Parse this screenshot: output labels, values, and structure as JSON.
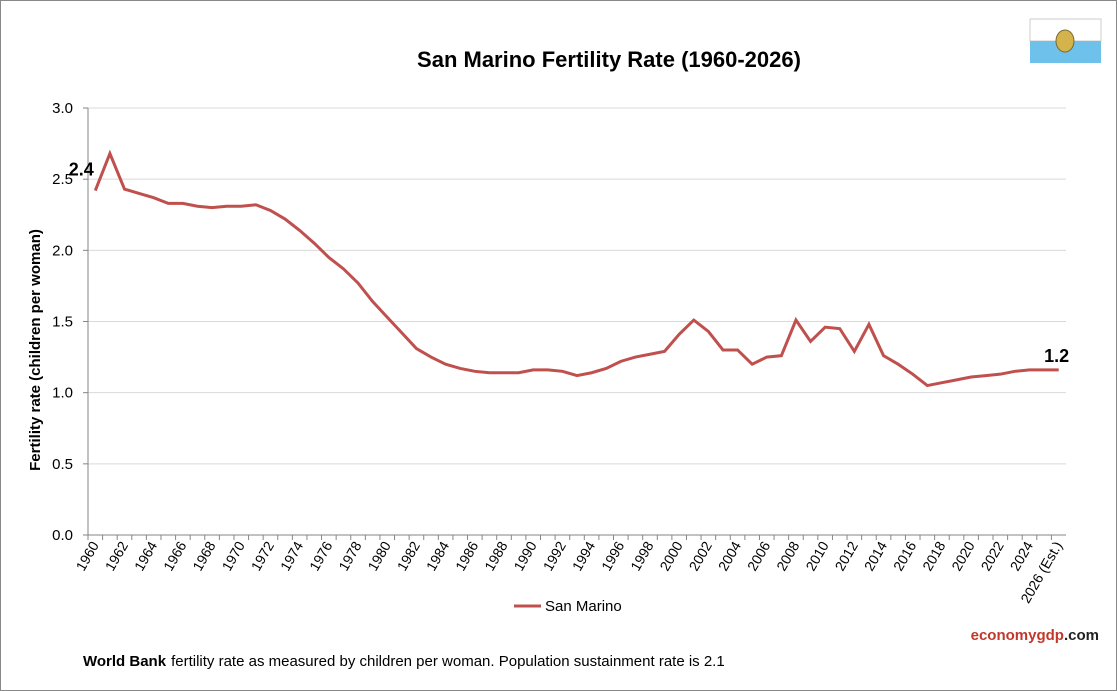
{
  "chart_data": {
    "type": "line",
    "title": "San Marino Fertility Rate (1960-2026)",
    "y_label": "Fertility rate (children per woman)",
    "categories": [
      "1960",
      null,
      "1962",
      null,
      "1964",
      null,
      "1966",
      null,
      "1968",
      null,
      "1970",
      null,
      "1972",
      null,
      "1974",
      null,
      "1976",
      null,
      "1978",
      null,
      "1980",
      null,
      "1982",
      null,
      "1984",
      null,
      "1986",
      null,
      "1988",
      null,
      "1990",
      null,
      "1992",
      null,
      "1994",
      null,
      "1996",
      null,
      "1998",
      null,
      "2000",
      null,
      "2002",
      null,
      "2004",
      null,
      "2006",
      null,
      "2008",
      null,
      "2010",
      null,
      "2012",
      null,
      "2014",
      null,
      "2016",
      null,
      "2018",
      null,
      "2020",
      null,
      "2022",
      null,
      "2024",
      null,
      "2026 (Est.)"
    ],
    "series": [
      {
        "name": "San Marino",
        "color": "#c0504d",
        "values": [
          2.42,
          2.68,
          2.43,
          2.4,
          2.37,
          2.33,
          2.33,
          2.31,
          2.3,
          2.31,
          2.31,
          2.32,
          2.28,
          2.22,
          2.14,
          2.05,
          1.95,
          1.87,
          1.77,
          1.64,
          1.53,
          1.42,
          1.31,
          1.25,
          1.2,
          1.17,
          1.15,
          1.14,
          1.14,
          1.14,
          1.16,
          1.16,
          1.15,
          1.12,
          1.14,
          1.17,
          1.22,
          1.25,
          1.27,
          1.29,
          1.41,
          1.51,
          1.43,
          1.3,
          1.3,
          1.2,
          1.25,
          1.26,
          1.51,
          1.36,
          1.46,
          1.45,
          1.29,
          1.48,
          1.26,
          1.2,
          1.13,
          1.05,
          1.07,
          1.09,
          1.11,
          1.12,
          1.13,
          1.15,
          1.16,
          1.16,
          1.16
        ],
        "value_labels": [
          "2.4",
          null,
          null,
          null,
          null,
          null,
          null,
          null,
          null,
          null,
          null,
          null,
          null,
          null,
          null,
          null,
          null,
          null,
          null,
          null,
          null,
          null,
          null,
          null,
          null,
          null,
          null,
          null,
          null,
          null,
          null,
          null,
          null,
          null,
          null,
          null,
          null,
          null,
          null,
          null,
          null,
          null,
          null,
          null,
          null,
          null,
          null,
          null,
          null,
          null,
          null,
          null,
          null,
          null,
          null,
          null,
          null,
          null,
          null,
          null,
          null,
          null,
          null,
          null,
          null,
          null,
          "1.2"
        ]
      }
    ],
    "ylim": [
      0,
      3
    ],
    "yticks": [
      {
        "value": 0,
        "label": "0.0"
      },
      0.5,
      {
        "value": 1,
        "label": "1.0"
      },
      1.5,
      {
        "value": 2,
        "label": "2.0"
      },
      2.5,
      {
        "value": 3,
        "label": "3.0"
      }
    ],
    "grid": true,
    "legend": "bottom"
  },
  "footer": {
    "source": "World Bank",
    "note": "fertility rate as measured by children per woman.  Population sustainment rate is 2.1"
  },
  "brand": {
    "part1": "economy",
    "part2": "gdp",
    "part3": ".com"
  }
}
